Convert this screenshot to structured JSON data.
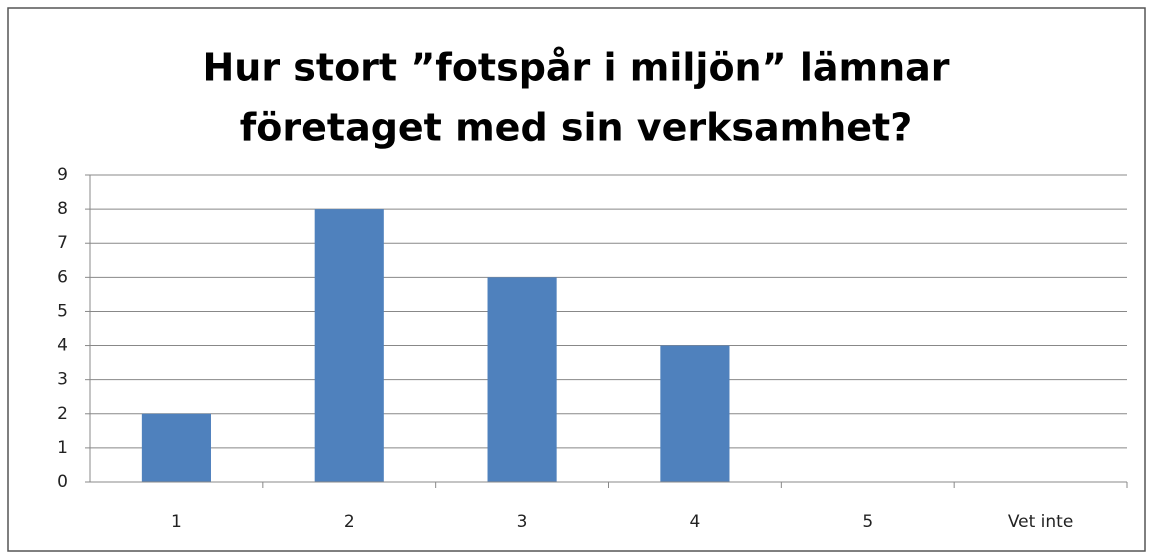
{
  "chart_data": {
    "type": "bar",
    "title": [
      "Hur stort ”fotspår i miljön” lämnar",
      "företaget med sin verksamhet?"
    ],
    "categories": [
      "1",
      "2",
      "3",
      "4",
      "5",
      "Vet inte"
    ],
    "values": [
      2,
      8,
      6,
      4,
      0,
      0
    ],
    "color": "#4f81bd",
    "ylim": [
      0,
      9
    ],
    "yticks": [
      0,
      1,
      2,
      3,
      4,
      5,
      6,
      7,
      8,
      9
    ],
    "grid": true
  }
}
